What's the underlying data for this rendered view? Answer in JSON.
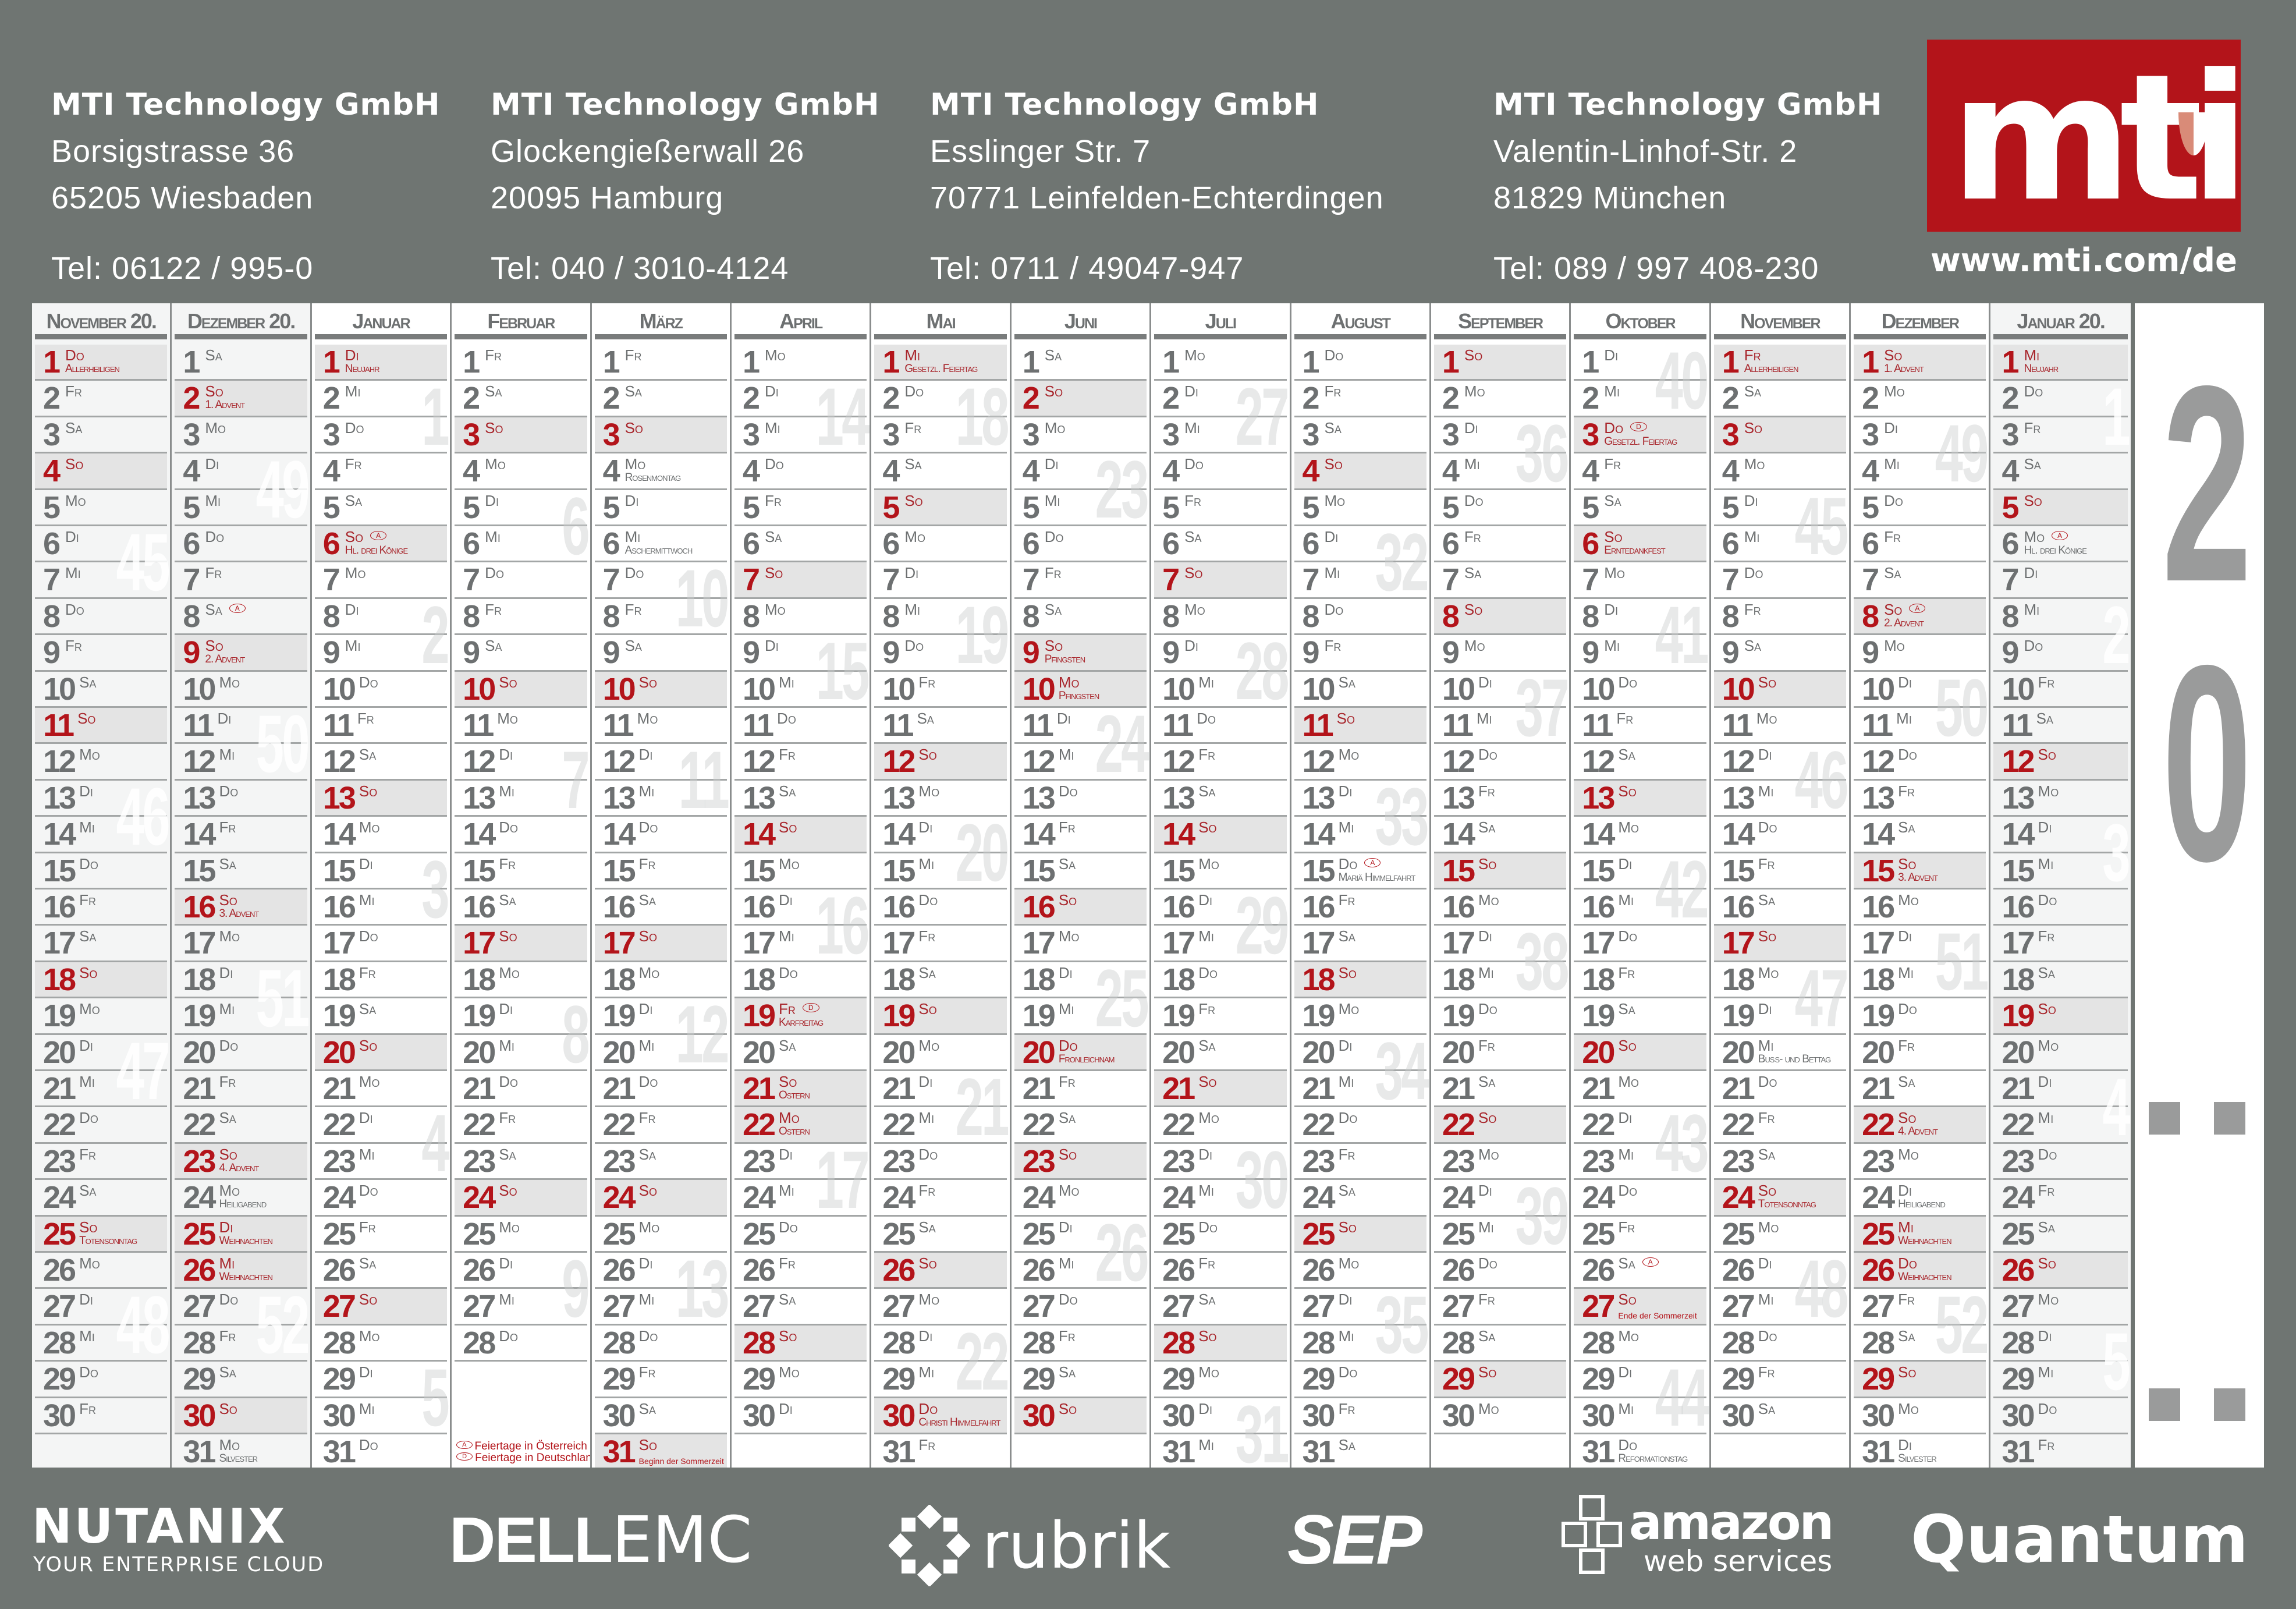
{
  "addresses": [
    {
      "name": "MTI Technology GmbH",
      "street": "Borsigstrasse 36",
      "city": "65205 Wiesbaden",
      "tel": "Tel:  06122 / 995-0"
    },
    {
      "name": "MTI Technology GmbH",
      "street": "Glockengießerwall 26",
      "city": "20095 Hamburg",
      "tel": "Tel:  040 / 3010-4124"
    },
    {
      "name": "MTI Technology GmbH",
      "street": "Esslinger Str. 7",
      "city": "70771 Leinfelden-Echterdingen",
      "tel": "Tel:  0711 / 49047-947"
    },
    {
      "name": "MTI Technology GmbH",
      "street": "Valentin-Linhof-Str. 2",
      "city": "81829 München",
      "tel": "Tel:  089 / 997 408-230"
    }
  ],
  "logo": {
    "text": "mti",
    "url": "www.mti.com/de"
  },
  "colors": {
    "background": "#6f7572",
    "red": "#b3141a",
    "text": "#6d7071",
    "shade": "#e4e4e4"
  },
  "weekdays": [
    "Mo",
    "Di",
    "Mi",
    "Do",
    "Fr",
    "Sa",
    "So"
  ],
  "year": {
    "digits": [
      "2",
      "0"
    ]
  },
  "legend": {
    "at": {
      "mark": "A",
      "text": "Feiertage in Österreich"
    },
    "de": {
      "mark": "D",
      "text": "Feiertage in Deutschland"
    }
  },
  "months": [
    {
      "name": "November 20.",
      "first": 3,
      "days": 30,
      "alt": true,
      "weeks": [
        [
          6,
          "45"
        ],
        [
          13,
          "46"
        ],
        [
          20,
          "47"
        ],
        [
          27,
          "48"
        ]
      ],
      "holidays": [
        {
          "d": 1,
          "label": "Allerheiligen",
          "red": true
        },
        {
          "d": 25,
          "label": "Totensonntag"
        }
      ]
    },
    {
      "name": "Dezember 20.",
      "first": 5,
      "days": 31,
      "alt": true,
      "weeks": [
        [
          4,
          "49"
        ],
        [
          11,
          "50"
        ],
        [
          18,
          "51"
        ],
        [
          26,
          "52"
        ]
      ],
      "holidays": [
        {
          "d": 2,
          "label": "1. Advent"
        },
        {
          "d": 8,
          "mark": "A"
        },
        {
          "d": 9,
          "label": "2. Advent"
        },
        {
          "d": 16,
          "label": "3. Advent"
        },
        {
          "d": 23,
          "label": "4. Advent"
        },
        {
          "d": 24,
          "label": "Heiligabend"
        },
        {
          "d": 25,
          "label": "Weihnachten",
          "red": true
        },
        {
          "d": 26,
          "label": "Weihnachten",
          "red": true
        },
        {
          "d": 31,
          "label": "Silvester"
        }
      ]
    },
    {
      "name": "Januar",
      "first": 1,
      "days": 31,
      "weeks": [
        [
          2,
          "1"
        ],
        [
          8,
          "2"
        ],
        [
          15,
          "3"
        ],
        [
          22,
          "4"
        ],
        [
          29,
          "5"
        ]
      ],
      "holidays": [
        {
          "d": 1,
          "label": "Neujahr",
          "red": true
        },
        {
          "d": 6,
          "label": "Hl. drei Könige",
          "mark": "A"
        }
      ]
    },
    {
      "name": "Februar",
      "first": 4,
      "days": 28,
      "legend": true,
      "weeks": [
        [
          5,
          "6"
        ],
        [
          12,
          "7"
        ],
        [
          19,
          "8"
        ],
        [
          26,
          "9"
        ]
      ],
      "holidays": []
    },
    {
      "name": "März",
      "first": 4,
      "days": 31,
      "weeks": [
        [
          5,
          "10"
        ],
        [
          12,
          "11"
        ],
        [
          19,
          "12"
        ],
        [
          26,
          "13"
        ]
      ],
      "holidays": [
        {
          "d": 4,
          "label": "Rosenmontag"
        },
        {
          "d": 6,
          "label": "Aschermittwoch"
        },
        {
          "d": 31,
          "note": "Beginn der Sommerzeit"
        }
      ]
    },
    {
      "name": "April",
      "first": 0,
      "days": 30,
      "weeks": [
        [
          2,
          "14"
        ],
        [
          9,
          "15"
        ],
        [
          16,
          "16"
        ],
        [
          23,
          "17"
        ]
      ],
      "holidays": [
        {
          "d": 19,
          "label": "Karfreitag",
          "red": true,
          "mark": "D"
        },
        {
          "d": 21,
          "label": "Ostern"
        },
        {
          "d": 22,
          "label": "Ostern",
          "red": true
        }
      ]
    },
    {
      "name": "Mai",
      "first": 2,
      "days": 31,
      "weeks": [
        [
          2,
          "18"
        ],
        [
          8,
          "19"
        ],
        [
          14,
          "20"
        ],
        [
          21,
          "21"
        ],
        [
          28,
          "22"
        ]
      ],
      "holidays": [
        {
          "d": 1,
          "label": "Gesetzl. Feiertag",
          "red": true
        },
        {
          "d": 30,
          "label": "Christi Himmelfahrt",
          "red": true
        }
      ]
    },
    {
      "name": "Juni",
      "first": 5,
      "days": 30,
      "weeks": [
        [
          4,
          "23"
        ],
        [
          11,
          "24"
        ],
        [
          18,
          "25"
        ],
        [
          25,
          "26"
        ]
      ],
      "holidays": [
        {
          "d": 9,
          "label": "Pfingsten"
        },
        {
          "d": 10,
          "label": "Pfingsten",
          "red": true
        },
        {
          "d": 20,
          "label": "Fronleichnam",
          "red": true
        }
      ]
    },
    {
      "name": "Juli",
      "first": 0,
      "days": 31,
      "weeks": [
        [
          2,
          "27"
        ],
        [
          9,
          "28"
        ],
        [
          16,
          "29"
        ],
        [
          23,
          "30"
        ],
        [
          30,
          "31"
        ]
      ],
      "holidays": []
    },
    {
      "name": "August",
      "first": 3,
      "days": 31,
      "weeks": [
        [
          6,
          "32"
        ],
        [
          13,
          "33"
        ],
        [
          20,
          "34"
        ],
        [
          27,
          "35"
        ]
      ],
      "holidays": [
        {
          "d": 15,
          "label": "Mariä Himmelfahrt",
          "mark": "A"
        }
      ]
    },
    {
      "name": "September",
      "first": 6,
      "days": 30,
      "weeks": [
        [
          3,
          "36"
        ],
        [
          10,
          "37"
        ],
        [
          17,
          "38"
        ],
        [
          24,
          "39"
        ]
      ],
      "holidays": []
    },
    {
      "name": "Oktober",
      "first": 1,
      "days": 31,
      "weeks": [
        [
          1,
          "40"
        ],
        [
          8,
          "41"
        ],
        [
          15,
          "42"
        ],
        [
          22,
          "43"
        ],
        [
          29,
          "44"
        ]
      ],
      "holidays": [
        {
          "d": 3,
          "label": "Gesetzl. Feiertag",
          "red": true,
          "mark": "D"
        },
        {
          "d": 6,
          "label": "Erntedankfest"
        },
        {
          "d": 26,
          "mark": "A"
        },
        {
          "d": 27,
          "note": "Ende der Sommerzeit"
        },
        {
          "d": 31,
          "label": "Reformationstag"
        }
      ]
    },
    {
      "name": "November",
      "first": 4,
      "days": 30,
      "weeks": [
        [
          5,
          "45"
        ],
        [
          12,
          "46"
        ],
        [
          19,
          "47"
        ],
        [
          26,
          "48"
        ]
      ],
      "holidays": [
        {
          "d": 1,
          "label": "Allerheiligen",
          "red": true
        },
        {
          "d": 20,
          "label": "Buß- und Bettag"
        },
        {
          "d": 24,
          "label": "Totensonntag"
        }
      ]
    },
    {
      "name": "Dezember",
      "first": 6,
      "days": 31,
      "weeks": [
        [
          3,
          "49"
        ],
        [
          10,
          "50"
        ],
        [
          17,
          "51"
        ],
        [
          24,
          "52"
        ]
      ],
      "holidays": [
        {
          "d": 1,
          "label": "1. Advent"
        },
        {
          "d": 8,
          "label": "2. Advent",
          "mark": "A"
        },
        {
          "d": 15,
          "label": "3. Advent"
        },
        {
          "d": 22,
          "label": "4. Advent"
        },
        {
          "d": 24,
          "label": "Heiligabend"
        },
        {
          "d": 25,
          "label": "Weihnachten",
          "red": true
        },
        {
          "d": 26,
          "label": "Weihnachten",
          "red": true
        },
        {
          "d": 31,
          "label": "Silvester"
        }
      ]
    },
    {
      "name": "Januar 20.",
      "first": 2,
      "days": 31,
      "alt": true,
      "weeks": [
        [
          1,
          "1"
        ],
        [
          8,
          "2"
        ],
        [
          14,
          "3"
        ],
        [
          21,
          "4"
        ],
        [
          28,
          "5"
        ]
      ],
      "holidays": [
        {
          "d": 1,
          "label": "Neujahr",
          "red": true
        },
        {
          "d": 6,
          "label": "Hl. drei Könige",
          "mark": "A"
        }
      ]
    }
  ],
  "sponsors": [
    {
      "name": "NUTANIX",
      "tagline": "YOUR ENTERPRISE CLOUD"
    },
    {
      "name": "DELL",
      "suffix": "EMC"
    },
    {
      "name": "rubrik"
    },
    {
      "name": "SEP"
    },
    {
      "name": "amazon",
      "tagline": "web services"
    },
    {
      "name": "Quantum"
    }
  ]
}
